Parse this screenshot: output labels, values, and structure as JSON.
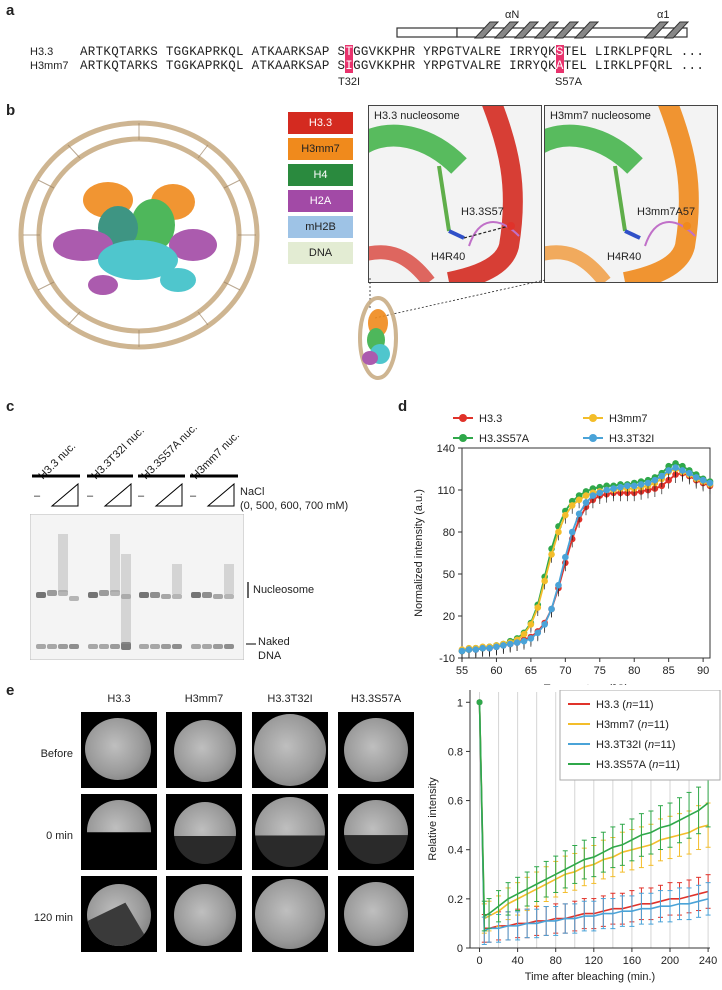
{
  "panels": {
    "a": "a",
    "b": "b",
    "c": "c",
    "d": "d",
    "e": "e"
  },
  "panel_a": {
    "helix1": "αN",
    "helix2": "α1",
    "seq1_name": "H3.3",
    "seq2_name": "H3mm7",
    "seq1": {
      "p1": "ARTKQTARKS TGGKAPRKQL ATKAARKSAP S",
      "mut1": "T",
      "p2": "GGVKKPHR YRPGTVALRE IRRYQK",
      "mut2": "S",
      "p3": "TEL LIRKLPFQRL ..."
    },
    "seq2": {
      "p1": "ARTKQTARKS TGGKAPRKQL ATKAARKSAP S",
      "mut1": "I",
      "p2": "GGVKKPHR YRPGTVALRE IRRYQK",
      "mut2": "A",
      "p3": "TEL LIRKLPFQRL ..."
    },
    "mutation1": "T32I",
    "mutation2": "S57A"
  },
  "panel_b": {
    "legend": [
      {
        "label": "H3.3",
        "color": "#d42a20"
      },
      {
        "label": "H3mm7",
        "color": "#f08a1c"
      },
      {
        "label": "H4",
        "color": "#2a8a3e"
      },
      {
        "label": "H2A",
        "color": "#a24aa6"
      },
      {
        "label": "mH2B",
        "color": "#9ec3e6"
      },
      {
        "label": "DNA",
        "color": "#e3ecd3"
      }
    ],
    "zoom1": {
      "title": "H3.3 nucleosome",
      "res1": "H3.3S57",
      "res2": "H4R40"
    },
    "zoom2": {
      "title": "H3mm7 nucleosome",
      "res1": "H3mm7A57",
      "res2": "H4R40"
    }
  },
  "panel_c": {
    "lanes": [
      "H3.3 nuc.",
      "H3.3T32I nuc.",
      "H3.3S57A nuc.",
      "H3mm7 nuc."
    ],
    "minus": "–",
    "nacl_label": "NaCl",
    "nacl_conc": "(0, 500, 600, 700 mM)",
    "band_nuc": "Nucleosome",
    "band_dna1": "Naked",
    "band_dna2": "DNA"
  },
  "chart_data": [
    {
      "type": "line",
      "panel": "d",
      "xlabel": "Temperature (°C)",
      "ylabel": "Normalized intensity (a.u.)",
      "xlim": [
        55,
        91
      ],
      "ylim": [
        -10,
        140
      ],
      "xticks": [
        55,
        60,
        65,
        70,
        75,
        80,
        85,
        90
      ],
      "yticks": [
        -10,
        20,
        50,
        80,
        110,
        140
      ],
      "legend_position": "top",
      "x": [
        55,
        56,
        57,
        58,
        59,
        60,
        61,
        62,
        63,
        64,
        65,
        66,
        67,
        68,
        69,
        70,
        71,
        72,
        73,
        74,
        75,
        76,
        77,
        78,
        79,
        80,
        81,
        82,
        83,
        84,
        85,
        86,
        87,
        88,
        89,
        90,
        91
      ],
      "series": [
        {
          "name": "H3.3",
          "color": "#e0322a",
          "values": [
            -5,
            -4,
            -4,
            -3,
            -3,
            -2,
            -1,
            0,
            1,
            3,
            5,
            9,
            15,
            25,
            40,
            58,
            75,
            89,
            98,
            103,
            106,
            107,
            108,
            108,
            108,
            108,
            109,
            110,
            111,
            113,
            117,
            121,
            122,
            120,
            117,
            115,
            113
          ]
        },
        {
          "name": "H3.3S57A",
          "color": "#2fa84a",
          "values": [
            -5,
            -4,
            -3,
            -3,
            -2,
            -1,
            0,
            2,
            4,
            8,
            15,
            28,
            48,
            68,
            84,
            95,
            102,
            106,
            109,
            111,
            112,
            113,
            113,
            114,
            114,
            115,
            116,
            117,
            119,
            122,
            127,
            129,
            127,
            124,
            121,
            118,
            116
          ]
        },
        {
          "name": "H3mm7",
          "color": "#f3bd2a",
          "values": [
            -4,
            -3,
            -3,
            -2,
            -2,
            -1,
            0,
            1,
            3,
            7,
            14,
            26,
            45,
            64,
            80,
            92,
            99,
            103,
            106,
            108,
            109,
            110,
            110,
            111,
            111,
            111,
            112,
            113,
            115,
            118,
            123,
            125,
            123,
            121,
            118,
            116,
            114
          ]
        },
        {
          "name": "H3.3T32I",
          "color": "#4aa3d8",
          "values": [
            -5,
            -4,
            -4,
            -3,
            -3,
            -2,
            -1,
            0,
            1,
            2,
            4,
            8,
            14,
            25,
            42,
            62,
            80,
            93,
            101,
            106,
            108,
            110,
            111,
            112,
            113,
            113,
            114,
            115,
            117,
            120,
            124,
            126,
            124,
            122,
            119,
            117,
            115
          ]
        }
      ]
    },
    {
      "type": "line",
      "panel": "e",
      "xlabel": "Time after bleaching (min.)",
      "ylabel": "Relative intensity",
      "xlim": [
        -10,
        242
      ],
      "ylim": [
        0,
        1.05
      ],
      "xticks": [
        0,
        40,
        80,
        120,
        160,
        200,
        240
      ],
      "yticks": [
        0,
        0.2,
        0.4,
        0.6,
        0.8,
        1
      ],
      "legend_position": "top-right",
      "x": [
        0,
        5,
        10,
        20,
        30,
        40,
        50,
        60,
        70,
        80,
        90,
        100,
        110,
        120,
        130,
        140,
        150,
        160,
        170,
        180,
        190,
        200,
        210,
        220,
        230,
        240
      ],
      "series": [
        {
          "name": "H3.3 (n=11)",
          "color": "#e0322a",
          "values": [
            1,
            0.08,
            0.08,
            0.09,
            0.09,
            0.1,
            0.1,
            0.11,
            0.11,
            0.12,
            0.12,
            0.13,
            0.14,
            0.14,
            0.15,
            0.16,
            0.16,
            0.17,
            0.18,
            0.18,
            0.19,
            0.2,
            0.2,
            0.21,
            0.22,
            0.23
          ]
        },
        {
          "name": "H3mm7 (n=11)",
          "color": "#f3bd2a",
          "values": [
            1,
            0.12,
            0.13,
            0.15,
            0.18,
            0.2,
            0.22,
            0.24,
            0.26,
            0.28,
            0.3,
            0.31,
            0.33,
            0.34,
            0.36,
            0.37,
            0.39,
            0.4,
            0.41,
            0.42,
            0.44,
            0.45,
            0.46,
            0.47,
            0.49,
            0.5
          ]
        },
        {
          "name": "H3.3T32I (n=11)",
          "color": "#4aa3d8",
          "values": [
            1,
            0.07,
            0.08,
            0.08,
            0.09,
            0.09,
            0.1,
            0.1,
            0.11,
            0.11,
            0.12,
            0.12,
            0.13,
            0.13,
            0.14,
            0.14,
            0.15,
            0.15,
            0.16,
            0.16,
            0.17,
            0.17,
            0.18,
            0.18,
            0.19,
            0.2
          ]
        },
        {
          "name": "H3.3S57A (n=11)",
          "color": "#2fa84a",
          "values": [
            1,
            0.13,
            0.14,
            0.17,
            0.2,
            0.22,
            0.24,
            0.26,
            0.28,
            0.3,
            0.32,
            0.34,
            0.36,
            0.37,
            0.39,
            0.41,
            0.42,
            0.44,
            0.46,
            0.47,
            0.49,
            0.5,
            0.52,
            0.54,
            0.56,
            0.59
          ]
        }
      ]
    }
  ],
  "panel_e": {
    "columns": [
      "H3.3",
      "H3mm7",
      "H3.3T32I",
      "H3.3S57A"
    ],
    "rows": [
      "Before",
      "0 min",
      "120 min"
    ]
  }
}
